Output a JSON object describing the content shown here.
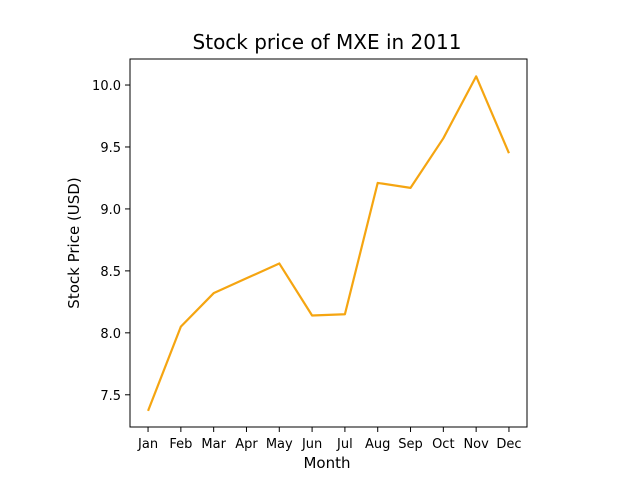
{
  "chart_data": {
    "type": "line",
    "title": "Stock price of MXE in 2011",
    "xlabel": "Month",
    "ylabel": "Stock Price (USD)",
    "categories": [
      "Jan",
      "Feb",
      "Mar",
      "Apr",
      "May",
      "Jun",
      "Jul",
      "Aug",
      "Sep",
      "Oct",
      "Nov",
      "Dec"
    ],
    "series": [
      {
        "color": "#f5a511",
        "values": [
          7.37,
          8.05,
          8.32,
          8.44,
          8.56,
          8.14,
          8.15,
          9.21,
          9.17,
          9.57,
          10.07,
          9.45
        ]
      }
    ],
    "ylim": [
      7.24,
      10.21
    ],
    "yticks": [
      7.5,
      8.0,
      8.5,
      9.0,
      9.5,
      10.0
    ],
    "ytick_labels": [
      "7.5",
      "8.0",
      "8.5",
      "9.0",
      "9.5",
      "10.0"
    ],
    "grid": false,
    "legend": "none"
  }
}
